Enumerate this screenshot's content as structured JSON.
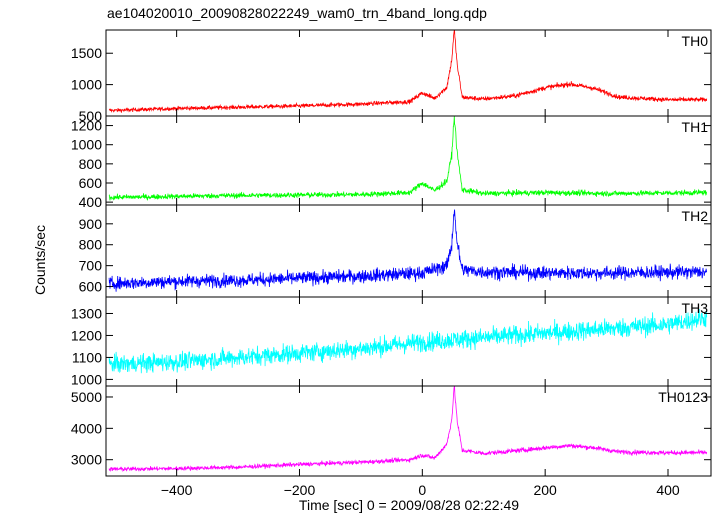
{
  "chart_data": {
    "type": "line",
    "title": "ae104020010_20090828022249_wam0_trn_4band_long.qdp",
    "xlabel": "Time [sec] 0 = 2009/08/28 02:22:49",
    "ylabel": "Counts/sec",
    "xlim": [
      -515,
      470
    ],
    "x_ticks": [
      -400,
      -200,
      0,
      200,
      400
    ],
    "grid": false,
    "legend": "none",
    "panels": [
      {
        "name": "TH0",
        "color": "#ff0000",
        "ylim": [
          500,
          1870
        ],
        "y_ticks": [
          500,
          1000,
          1500
        ],
        "points": [
          [
            -500,
            590
          ],
          [
            -400,
            620
          ],
          [
            -300,
            640
          ],
          [
            -200,
            660
          ],
          [
            -100,
            690
          ],
          [
            -20,
            730
          ],
          [
            0,
            870
          ],
          [
            20,
            780
          ],
          [
            40,
            960
          ],
          [
            48,
            1400
          ],
          [
            52,
            1880
          ],
          [
            57,
            1300
          ],
          [
            65,
            800
          ],
          [
            100,
            770
          ],
          [
            150,
            820
          ],
          [
            200,
            950
          ],
          [
            240,
            1010
          ],
          [
            280,
            940
          ],
          [
            320,
            800
          ],
          [
            400,
            760
          ],
          [
            460,
            760
          ]
        ]
      },
      {
        "name": "TH1",
        "color": "#00ff00",
        "ylim": [
          370,
          1300
        ],
        "y_ticks": [
          400,
          600,
          800,
          1000,
          1200
        ],
        "points": [
          [
            -500,
            450
          ],
          [
            -300,
            470
          ],
          [
            -100,
            480
          ],
          [
            -20,
            500
          ],
          [
            0,
            600
          ],
          [
            20,
            520
          ],
          [
            40,
            620
          ],
          [
            48,
            900
          ],
          [
            52,
            1300
          ],
          [
            57,
            900
          ],
          [
            65,
            530
          ],
          [
            100,
            490
          ],
          [
            200,
            500
          ],
          [
            300,
            490
          ],
          [
            460,
            500
          ]
        ]
      },
      {
        "name": "TH2",
        "color": "#0000ff",
        "ylim": [
          550,
          990
        ],
        "y_ticks": [
          600,
          700,
          800,
          900
        ],
        "points": [
          [
            -500,
            615
          ],
          [
            -400,
            625
          ],
          [
            -300,
            630
          ],
          [
            -200,
            640
          ],
          [
            -100,
            650
          ],
          [
            0,
            665
          ],
          [
            40,
            700
          ],
          [
            48,
            800
          ],
          [
            52,
            980
          ],
          [
            57,
            800
          ],
          [
            65,
            680
          ],
          [
            100,
            670
          ],
          [
            200,
            665
          ],
          [
            300,
            665
          ],
          [
            460,
            670
          ]
        ]
      },
      {
        "name": "TH3",
        "color": "#00ffff",
        "ylim": [
          970,
          1375
        ],
        "y_ticks": [
          1000,
          1100,
          1200,
          1300
        ],
        "points": [
          [
            -500,
            1070
          ],
          [
            -400,
            1080
          ],
          [
            -300,
            1100
          ],
          [
            -200,
            1120
          ],
          [
            -100,
            1140
          ],
          [
            0,
            1170
          ],
          [
            100,
            1190
          ],
          [
            200,
            1210
          ],
          [
            300,
            1230
          ],
          [
            400,
            1250
          ],
          [
            460,
            1280
          ]
        ]
      },
      {
        "name": "TH0123",
        "color": "#ff00ff",
        "ylim": [
          2480,
          5350
        ],
        "y_ticks": [
          3000,
          4000,
          5000
        ],
        "points": [
          [
            -500,
            2700
          ],
          [
            -400,
            2720
          ],
          [
            -300,
            2760
          ],
          [
            -200,
            2850
          ],
          [
            -100,
            2920
          ],
          [
            -20,
            3000
          ],
          [
            0,
            3150
          ],
          [
            20,
            3050
          ],
          [
            40,
            3500
          ],
          [
            48,
            4300
          ],
          [
            52,
            5330
          ],
          [
            57,
            4200
          ],
          [
            65,
            3300
          ],
          [
            100,
            3200
          ],
          [
            150,
            3280
          ],
          [
            200,
            3380
          ],
          [
            240,
            3450
          ],
          [
            280,
            3380
          ],
          [
            320,
            3250
          ],
          [
            400,
            3220
          ],
          [
            460,
            3230
          ]
        ]
      }
    ]
  }
}
